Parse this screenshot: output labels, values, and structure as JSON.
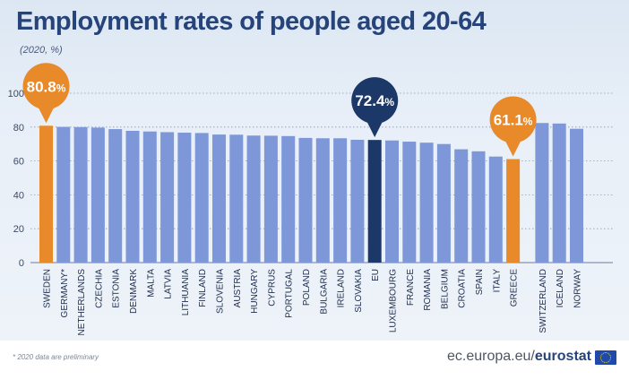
{
  "chart_data": {
    "type": "bar",
    "title": "Employment rates of people aged 20-64",
    "subtitle": "(2020, %)",
    "xlabel": "",
    "ylabel": "",
    "ylim": [
      0,
      100
    ],
    "yticks": [
      "0",
      "20",
      "40",
      "60",
      "80",
      "100"
    ],
    "grid": "y-major",
    "categories": [
      "SWEDEN",
      "GERMANY*",
      "NETHERLANDS",
      "CZECHIA",
      "ESTONIA",
      "DENMARK",
      "MALTA",
      "LATVIA",
      "LITHUANIA",
      "FINLAND",
      "SLOVENIA",
      "AUSTRIA",
      "HUNGARY",
      "CYPRUS",
      "PORTUGAL",
      "POLAND",
      "BULGARIA",
      "IRELAND",
      "SLOVAKIA",
      "EU",
      "LUXEMBOURG",
      "FRANCE",
      "ROMANIA",
      "BELGIUM",
      "CROATIA",
      "SPAIN",
      "ITALY",
      "GREECE",
      "SWITZERLAND",
      "ICELAND",
      "NORWAY"
    ],
    "values": [
      80.8,
      80.1,
      80.0,
      79.7,
      78.8,
      77.8,
      77.4,
      77.0,
      76.7,
      76.5,
      75.6,
      75.5,
      75.0,
      74.9,
      74.7,
      73.6,
      73.4,
      73.4,
      72.5,
      72.4,
      72.1,
      71.4,
      70.8,
      70.0,
      66.9,
      65.7,
      62.6,
      61.1,
      82.4,
      82.1,
      79.0
    ],
    "highlights": [
      {
        "category": "SWEDEN",
        "label": "80.8",
        "unit": "%",
        "color": "#e8892a"
      },
      {
        "category": "EU",
        "label": "72.4",
        "unit": "%",
        "color": "#1b3868"
      },
      {
        "category": "GREECE",
        "label": "61.1",
        "unit": "%",
        "color": "#e8892a"
      }
    ],
    "colors": {
      "bar": "#7d97d8",
      "eu": "#1b3868",
      "highlight": "#e8892a"
    }
  },
  "footnote": "* 2020 data are preliminary",
  "source": {
    "prefix": "ec.europa.eu/",
    "brand": "eurostat"
  }
}
